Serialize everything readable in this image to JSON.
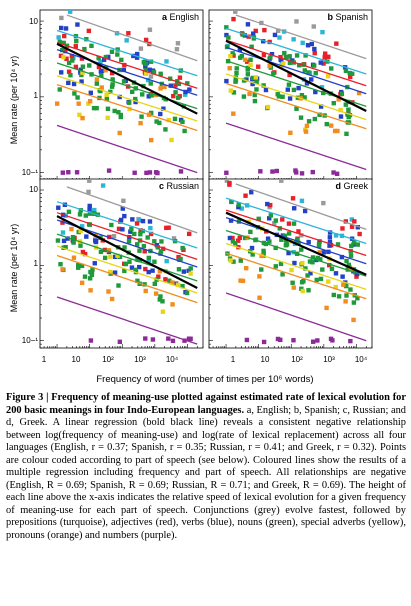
{
  "figure": {
    "ylabel": "Mean rate (per 10⁴ yr)",
    "xlabel": "Frequency of word (number of times per 10⁶ words)",
    "y_ticks": [
      "10−¹",
      "1",
      "10"
    ],
    "x_ticks": [
      "1",
      "10",
      "10²",
      "10³",
      "10⁴"
    ],
    "colors": {
      "conjunctions": "#9a9a9a",
      "prepositions": "#2bb5d6",
      "adjectives": "#e8202a",
      "verbs": "#2340c8",
      "nouns": "#1e9a3a",
      "special_adverbs": "#e8d418",
      "pronouns": "#f28c1e",
      "numbers": "#8c2a98",
      "regression": "#000000"
    }
  },
  "chart_data": [
    {
      "type": "scatter",
      "panel": "a",
      "title": "English",
      "xscale": "log",
      "yscale": "log",
      "xlim": [
        0.3,
        30000
      ],
      "ylim": [
        0.08,
        14
      ],
      "grid": false,
      "lines": {
        "regression": [
          [
            1,
            5.0
          ],
          [
            20000,
            0.6
          ]
        ],
        "conjunctions": [
          [
            2,
            12
          ],
          [
            20000,
            3.0
          ]
        ],
        "prepositions": [
          [
            1,
            7.5
          ],
          [
            20000,
            1.9
          ]
        ],
        "adjectives": [
          [
            1,
            5.2
          ],
          [
            20000,
            1.3
          ]
        ],
        "verbs": [
          [
            1,
            4.2
          ],
          [
            20000,
            1.05
          ]
        ],
        "nouns": [
          [
            1,
            2.8
          ],
          [
            20000,
            0.7
          ]
        ],
        "special_adverbs": [
          [
            1,
            1.9
          ],
          [
            20000,
            0.48
          ]
        ],
        "pronouns": [
          [
            1,
            1.45
          ],
          [
            20000,
            0.36
          ]
        ],
        "numbers": [
          [
            1,
            0.42
          ],
          [
            20000,
            0.1
          ]
        ]
      }
    },
    {
      "type": "scatter",
      "panel": "b",
      "title": "Spanish",
      "xscale": "log",
      "yscale": "log",
      "xlim": [
        0.3,
        30000
      ],
      "ylim": [
        0.08,
        14
      ],
      "grid": false,
      "lines": {
        "regression": [
          [
            1,
            5.5
          ],
          [
            20000,
            0.65
          ]
        ],
        "conjunctions": [
          [
            2,
            12
          ],
          [
            20000,
            3.2
          ]
        ],
        "prepositions": [
          [
            1,
            8
          ],
          [
            20000,
            2.0
          ]
        ],
        "adjectives": [
          [
            1,
            5.6
          ],
          [
            20000,
            1.4
          ]
        ],
        "verbs": [
          [
            1,
            4.5
          ],
          [
            20000,
            1.1
          ]
        ],
        "nouns": [
          [
            1,
            3.0
          ],
          [
            20000,
            0.75
          ]
        ],
        "special_adverbs": [
          [
            1,
            2.0
          ],
          [
            20000,
            0.5
          ]
        ],
        "pronouns": [
          [
            1,
            1.5
          ],
          [
            20000,
            0.38
          ]
        ],
        "numbers": [
          [
            1,
            0.45
          ],
          [
            20000,
            0.11
          ]
        ]
      }
    },
    {
      "type": "scatter",
      "panel": "c",
      "title": "Russian",
      "xscale": "log",
      "yscale": "log",
      "xlim": [
        0.3,
        30000
      ],
      "ylim": [
        0.08,
        14
      ],
      "grid": false,
      "lines": {
        "regression": [
          [
            1,
            4.5
          ],
          [
            20000,
            0.5
          ]
        ],
        "conjunctions": [
          [
            2,
            11
          ],
          [
            20000,
            2.7
          ]
        ],
        "prepositions": [
          [
            1,
            7
          ],
          [
            20000,
            1.7
          ]
        ],
        "adjectives": [
          [
            1,
            5.0
          ],
          [
            20000,
            1.2
          ]
        ],
        "verbs": [
          [
            1,
            4.0
          ],
          [
            20000,
            0.95
          ]
        ],
        "nouns": [
          [
            1,
            2.6
          ],
          [
            20000,
            0.62
          ]
        ],
        "special_adverbs": [
          [
            1,
            1.8
          ],
          [
            20000,
            0.43
          ]
        ],
        "pronouns": [
          [
            1,
            1.35
          ],
          [
            20000,
            0.32
          ]
        ],
        "numbers": [
          [
            1,
            0.38
          ],
          [
            20000,
            0.09
          ]
        ]
      }
    },
    {
      "type": "scatter",
      "panel": "d",
      "title": "Greek",
      "xscale": "log",
      "yscale": "log",
      "xlim": [
        0.3,
        30000
      ],
      "ylim": [
        0.08,
        14
      ],
      "grid": false,
      "lines": {
        "regression": [
          [
            1,
            5.0
          ],
          [
            20000,
            0.75
          ]
        ],
        "conjunctions": [
          [
            2,
            12
          ],
          [
            20000,
            3.0
          ]
        ],
        "prepositions": [
          [
            1,
            7.8
          ],
          [
            20000,
            1.95
          ]
        ],
        "adjectives": [
          [
            1,
            5.4
          ],
          [
            20000,
            1.35
          ]
        ],
        "verbs": [
          [
            1,
            4.3
          ],
          [
            20000,
            1.05
          ]
        ],
        "nouns": [
          [
            1,
            2.9
          ],
          [
            20000,
            0.72
          ]
        ],
        "special_adverbs": [
          [
            1,
            1.95
          ],
          [
            20000,
            0.48
          ]
        ],
        "pronouns": [
          [
            1,
            1.45
          ],
          [
            20000,
            0.36
          ]
        ],
        "numbers": [
          [
            1,
            0.43
          ],
          [
            20000,
            0.1
          ]
        ]
      }
    }
  ],
  "caption": {
    "lead": "Figure 3 | Frequency of meaning-use plotted against estimated rate of lexical evolution for 200 basic meanings in four Indo-European languages.",
    "body_1": " a, English; b, Spanish; c, Russian; and d, Greek. A linear regression (bold black line) reveals a consistent negative relationship between log(frequency of meaning-use) and log(rate of lexical replacement) across all four languages (English, r = 0.37; Spanish, r = 0.35; Russian, r = 0.41; and Greek, r = 0.32). Points are colour coded according to part of speech (see below). Coloured lines show the results of a multiple regression including frequency and part of speech. All relationships are negative (English, R = 0.69; Spanish, R = 0.69; Russian, R = 0.71; and Greek, R = 0.69). The height of each line above the x-axis indicates the relative speed of lexical evolution for a given frequency of meaning-use for each part of speech. Conjunctions (grey) evolve fastest, followed by prepositions (turquoise), adjectives (red), verbs (blue), nouns (green), special adverbs (yellow), pronouns (orange) and numbers (purple)."
  }
}
